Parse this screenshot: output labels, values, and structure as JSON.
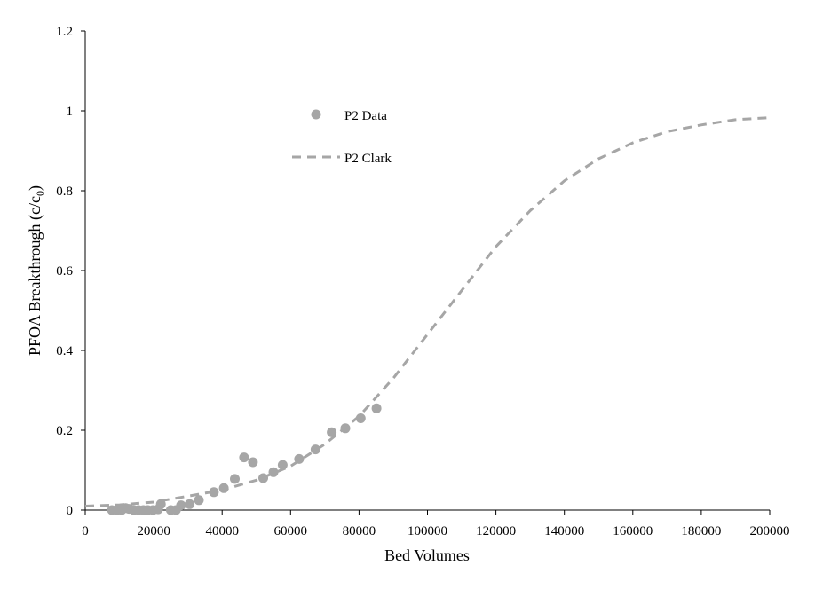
{
  "chart_data": {
    "type": "scatter",
    "xlabel": "Bed Volumes",
    "ylabel": "PFOA Breakthrough (c/c",
    "ylabel_sub": "0",
    "ylabel_close": ")",
    "xlim": [
      0,
      200000
    ],
    "ylim": [
      0,
      1.2
    ],
    "x_ticks": [
      0,
      20000,
      40000,
      60000,
      80000,
      100000,
      120000,
      140000,
      160000,
      180000,
      200000
    ],
    "y_ticks": [
      0,
      0.2,
      0.4,
      0.6,
      0.8,
      1,
      1.2
    ],
    "x_tick_labels": [
      "0",
      "20000",
      "40000",
      "60000",
      "80000",
      "100000",
      "120000",
      "140000",
      "160000",
      "180000",
      "200000"
    ],
    "y_tick_labels": [
      "0",
      "0.2",
      "0.4",
      "0.6",
      "0.8",
      "1",
      "1.2"
    ],
    "grid": false,
    "legend_position": "upper-left",
    "colors": {
      "series": "#a6a6a6",
      "axis": "#000000"
    },
    "series": [
      {
        "name": "P2 Data",
        "kind": "scatter",
        "points": [
          [
            7800,
            0
          ],
          [
            9200,
            0
          ],
          [
            10600,
            0
          ],
          [
            11800,
            0.005
          ],
          [
            12800,
            0.003
          ],
          [
            14200,
            0
          ],
          [
            15600,
            0
          ],
          [
            17000,
            0
          ],
          [
            18300,
            0
          ],
          [
            19800,
            0
          ],
          [
            21300,
            0.002
          ],
          [
            22100,
            0.015
          ],
          [
            25000,
            0
          ],
          [
            26500,
            0
          ],
          [
            28000,
            0.012
          ],
          [
            30500,
            0.015
          ],
          [
            33200,
            0.025
          ],
          [
            37600,
            0.045
          ],
          [
            40500,
            0.055
          ],
          [
            43700,
            0.078
          ],
          [
            46400,
            0.132
          ],
          [
            49000,
            0.12
          ],
          [
            52000,
            0.08
          ],
          [
            55000,
            0.095
          ],
          [
            57700,
            0.113
          ],
          [
            62500,
            0.128
          ],
          [
            67300,
            0.152
          ],
          [
            72000,
            0.195
          ],
          [
            76000,
            0.205
          ],
          [
            80500,
            0.23
          ],
          [
            85100,
            0.255
          ]
        ]
      },
      {
        "name": "P2 Clark",
        "kind": "line",
        "style": "dashed",
        "points": [
          [
            0,
            0.01
          ],
          [
            10000,
            0.013
          ],
          [
            20000,
            0.02
          ],
          [
            30000,
            0.035
          ],
          [
            40000,
            0.05
          ],
          [
            50000,
            0.075
          ],
          [
            60000,
            0.11
          ],
          [
            70000,
            0.165
          ],
          [
            80000,
            0.235
          ],
          [
            90000,
            0.33
          ],
          [
            100000,
            0.44
          ],
          [
            110000,
            0.55
          ],
          [
            120000,
            0.66
          ],
          [
            130000,
            0.75
          ],
          [
            140000,
            0.825
          ],
          [
            150000,
            0.88
          ],
          [
            160000,
            0.92
          ],
          [
            170000,
            0.948
          ],
          [
            180000,
            0.965
          ],
          [
            190000,
            0.978
          ],
          [
            200000,
            0.983
          ]
        ]
      }
    ]
  }
}
